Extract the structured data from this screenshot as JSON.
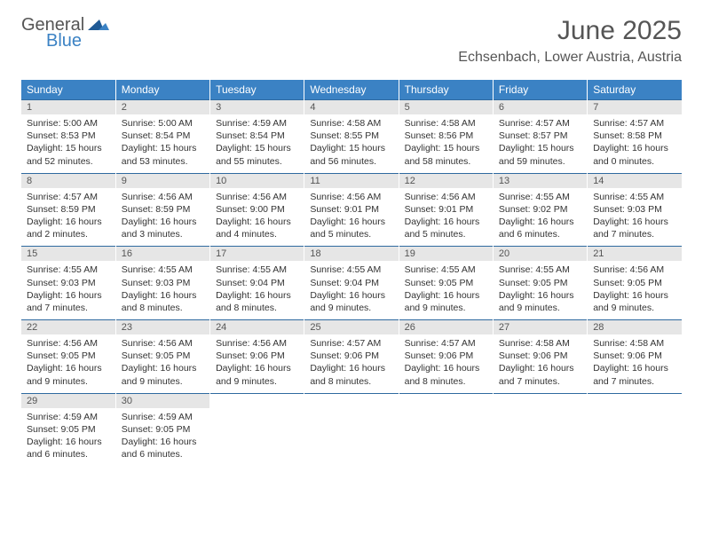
{
  "logo": {
    "text1": "General",
    "text2": "Blue",
    "mark_color": "#1f5a96"
  },
  "title": "June 2025",
  "location": "Echsenbach, Lower Austria, Austria",
  "colors": {
    "header_bg": "#3b82c4",
    "header_text": "#ffffff",
    "day_number_bg": "#e6e6e6",
    "rule": "#2f6aa0",
    "body_text": "#333333"
  },
  "weekdays": [
    "Sunday",
    "Monday",
    "Tuesday",
    "Wednesday",
    "Thursday",
    "Friday",
    "Saturday"
  ],
  "days": [
    {
      "n": "1",
      "sunrise": "5:00 AM",
      "sunset": "8:53 PM",
      "daylight": "15 hours and 52 minutes."
    },
    {
      "n": "2",
      "sunrise": "5:00 AM",
      "sunset": "8:54 PM",
      "daylight": "15 hours and 53 minutes."
    },
    {
      "n": "3",
      "sunrise": "4:59 AM",
      "sunset": "8:54 PM",
      "daylight": "15 hours and 55 minutes."
    },
    {
      "n": "4",
      "sunrise": "4:58 AM",
      "sunset": "8:55 PM",
      "daylight": "15 hours and 56 minutes."
    },
    {
      "n": "5",
      "sunrise": "4:58 AM",
      "sunset": "8:56 PM",
      "daylight": "15 hours and 58 minutes."
    },
    {
      "n": "6",
      "sunrise": "4:57 AM",
      "sunset": "8:57 PM",
      "daylight": "15 hours and 59 minutes."
    },
    {
      "n": "7",
      "sunrise": "4:57 AM",
      "sunset": "8:58 PM",
      "daylight": "16 hours and 0 minutes."
    },
    {
      "n": "8",
      "sunrise": "4:57 AM",
      "sunset": "8:59 PM",
      "daylight": "16 hours and 2 minutes."
    },
    {
      "n": "9",
      "sunrise": "4:56 AM",
      "sunset": "8:59 PM",
      "daylight": "16 hours and 3 minutes."
    },
    {
      "n": "10",
      "sunrise": "4:56 AM",
      "sunset": "9:00 PM",
      "daylight": "16 hours and 4 minutes."
    },
    {
      "n": "11",
      "sunrise": "4:56 AM",
      "sunset": "9:01 PM",
      "daylight": "16 hours and 5 minutes."
    },
    {
      "n": "12",
      "sunrise": "4:56 AM",
      "sunset": "9:01 PM",
      "daylight": "16 hours and 5 minutes."
    },
    {
      "n": "13",
      "sunrise": "4:55 AM",
      "sunset": "9:02 PM",
      "daylight": "16 hours and 6 minutes."
    },
    {
      "n": "14",
      "sunrise": "4:55 AM",
      "sunset": "9:03 PM",
      "daylight": "16 hours and 7 minutes."
    },
    {
      "n": "15",
      "sunrise": "4:55 AM",
      "sunset": "9:03 PM",
      "daylight": "16 hours and 7 minutes."
    },
    {
      "n": "16",
      "sunrise": "4:55 AM",
      "sunset": "9:03 PM",
      "daylight": "16 hours and 8 minutes."
    },
    {
      "n": "17",
      "sunrise": "4:55 AM",
      "sunset": "9:04 PM",
      "daylight": "16 hours and 8 minutes."
    },
    {
      "n": "18",
      "sunrise": "4:55 AM",
      "sunset": "9:04 PM",
      "daylight": "16 hours and 9 minutes."
    },
    {
      "n": "19",
      "sunrise": "4:55 AM",
      "sunset": "9:05 PM",
      "daylight": "16 hours and 9 minutes."
    },
    {
      "n": "20",
      "sunrise": "4:55 AM",
      "sunset": "9:05 PM",
      "daylight": "16 hours and 9 minutes."
    },
    {
      "n": "21",
      "sunrise": "4:56 AM",
      "sunset": "9:05 PM",
      "daylight": "16 hours and 9 minutes."
    },
    {
      "n": "22",
      "sunrise": "4:56 AM",
      "sunset": "9:05 PM",
      "daylight": "16 hours and 9 minutes."
    },
    {
      "n": "23",
      "sunrise": "4:56 AM",
      "sunset": "9:05 PM",
      "daylight": "16 hours and 9 minutes."
    },
    {
      "n": "24",
      "sunrise": "4:56 AM",
      "sunset": "9:06 PM",
      "daylight": "16 hours and 9 minutes."
    },
    {
      "n": "25",
      "sunrise": "4:57 AM",
      "sunset": "9:06 PM",
      "daylight": "16 hours and 8 minutes."
    },
    {
      "n": "26",
      "sunrise": "4:57 AM",
      "sunset": "9:06 PM",
      "daylight": "16 hours and 8 minutes."
    },
    {
      "n": "27",
      "sunrise": "4:58 AM",
      "sunset": "9:06 PM",
      "daylight": "16 hours and 7 minutes."
    },
    {
      "n": "28",
      "sunrise": "4:58 AM",
      "sunset": "9:06 PM",
      "daylight": "16 hours and 7 minutes."
    },
    {
      "n": "29",
      "sunrise": "4:59 AM",
      "sunset": "9:05 PM",
      "daylight": "16 hours and 6 minutes."
    },
    {
      "n": "30",
      "sunrise": "4:59 AM",
      "sunset": "9:05 PM",
      "daylight": "16 hours and 6 minutes."
    }
  ],
  "labels": {
    "sunrise": "Sunrise: ",
    "sunset": "Sunset: ",
    "daylight": "Daylight: "
  },
  "layout": {
    "start_offset": 0,
    "rows": 5,
    "cols": 7
  }
}
